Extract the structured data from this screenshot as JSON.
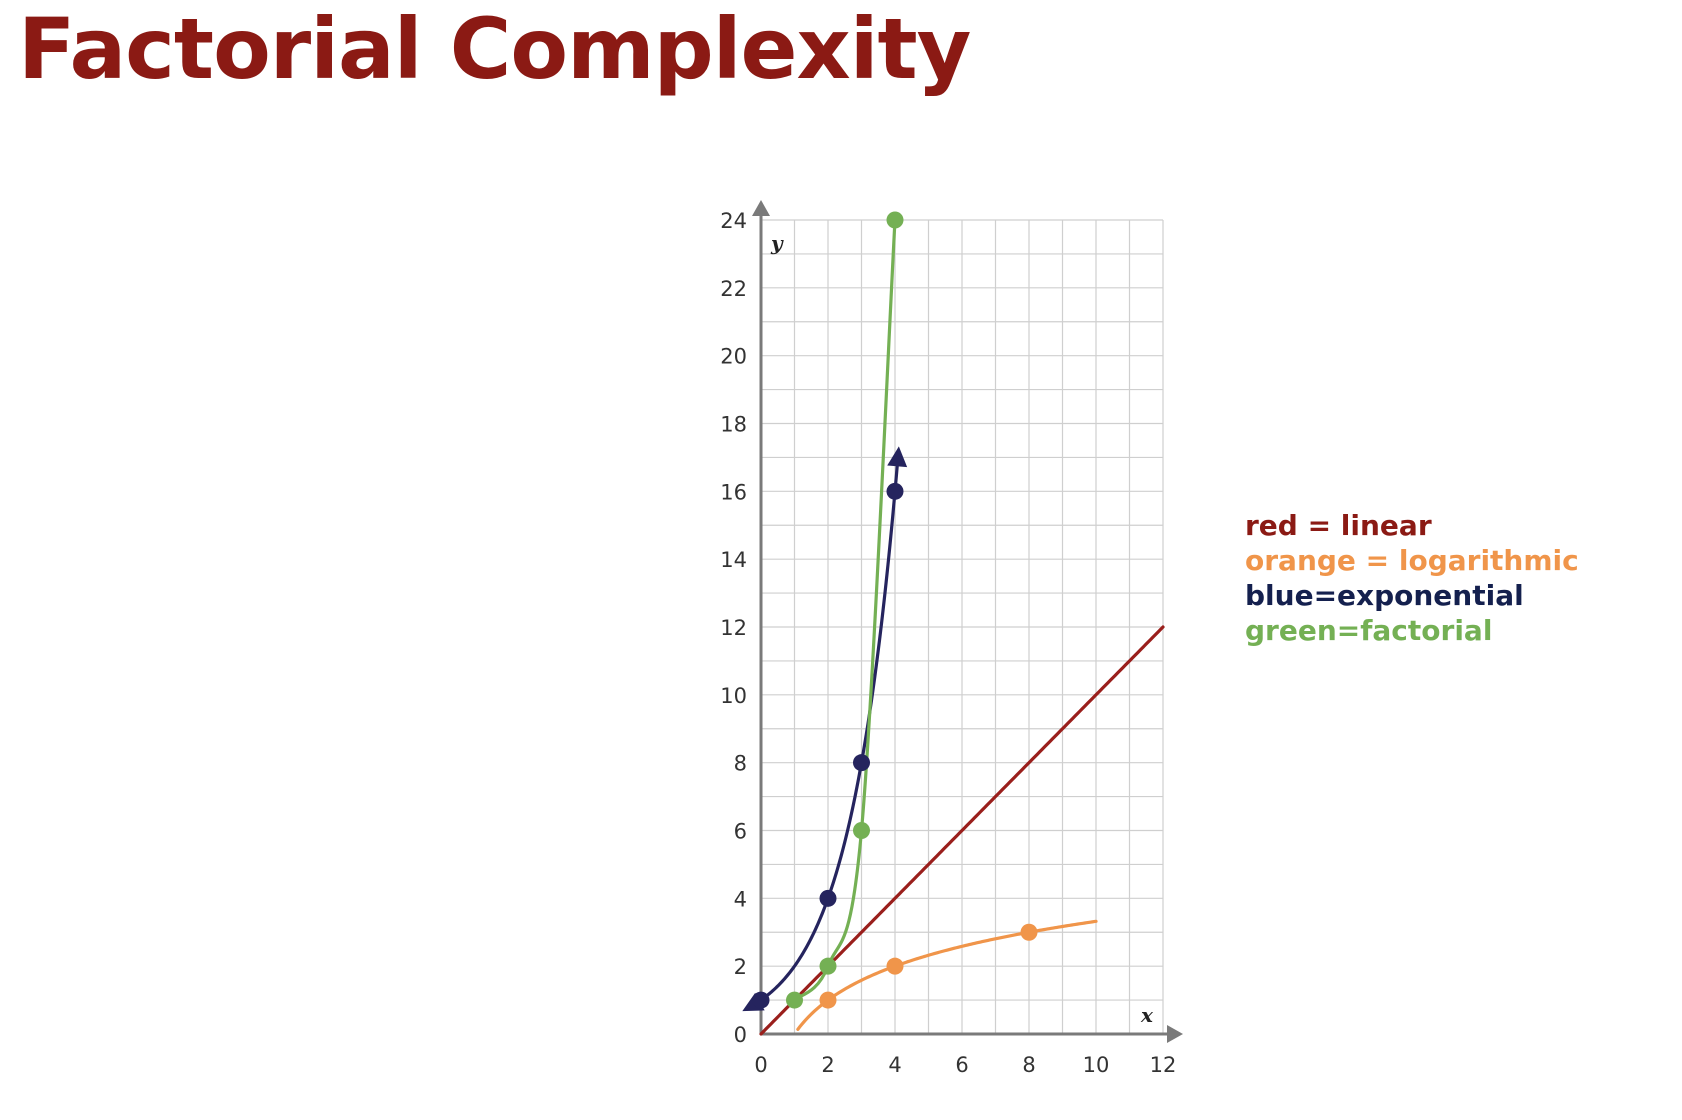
{
  "title": "Factorial Complexity",
  "legend": [
    {
      "text": "red = linear",
      "color": "#8b1a14"
    },
    {
      "text": "orange = logarithmic",
      "color": "#f0954a"
    },
    {
      "text": "blue=exponential",
      "color": "#14204e"
    },
    {
      "text": "green=factorial",
      "color": "#74b054"
    }
  ],
  "chart_data": {
    "type": "line",
    "title": "",
    "xlabel": "x",
    "ylabel": "y",
    "xlim": [
      0,
      12
    ],
    "ylim": [
      0,
      24
    ],
    "x_ticks": [
      0,
      2,
      4,
      6,
      8,
      10,
      12
    ],
    "y_ticks": [
      0,
      2,
      4,
      6,
      8,
      10,
      12,
      14,
      16,
      18,
      20,
      22,
      24
    ],
    "grid": true,
    "series": [
      {
        "color": "#9a1f1c",
        "curve_range": [
          0,
          12
        ],
        "points": []
      },
      {
        "color": "#f0954a",
        "curve_range": [
          1.1,
          10
        ],
        "points": [
          [
            2,
            1
          ],
          [
            4,
            2
          ],
          [
            8,
            3
          ]
        ]
      },
      {
        "color": "#25245e",
        "curve_range": [
          -0.4,
          4.1
        ],
        "arrows": true,
        "points": [
          [
            0,
            1
          ],
          [
            2,
            4
          ],
          [
            3,
            8
          ],
          [
            4,
            16
          ]
        ]
      },
      {
        "color": "#74b054",
        "curve_range": [
          1,
          4
        ],
        "points": [
          [
            1,
            1
          ],
          [
            2,
            2
          ],
          [
            3,
            6
          ],
          [
            4,
            24
          ]
        ]
      }
    ]
  }
}
